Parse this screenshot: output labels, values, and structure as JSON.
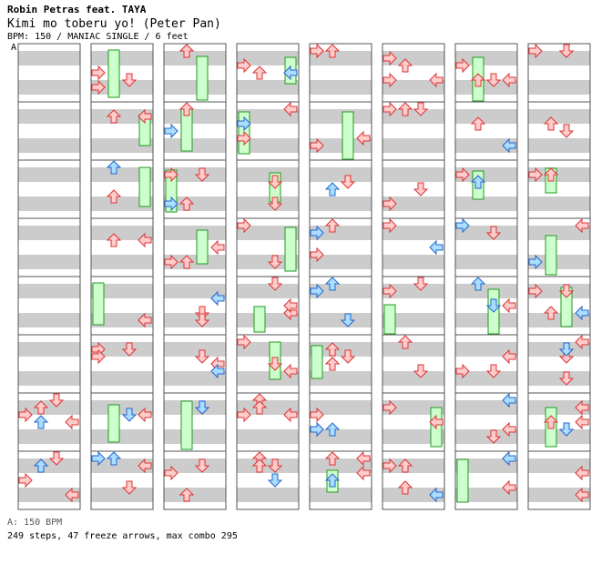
{
  "song": {
    "artist": "Robin Petras feat. TAYA",
    "title": "Kimi mo toberu yo! (Peter Pan)",
    "info": "BPM: 150 / MANIAC SINGLE / 6 feet"
  },
  "section_marker": "A",
  "footer": {
    "bpm_line": "A: 150 BPM",
    "stats_line": "249 steps, 47 freeze arrows, max combo 295"
  },
  "colors": {
    "stripe": "#cccccc",
    "border": "#555555",
    "arrow_red_fill": "#ffcccc",
    "arrow_red_stroke": "#dd3333",
    "arrow_blue_fill": "#aaddff",
    "arrow_blue_stroke": "#2266cc",
    "freeze_fill": "#ccffcc",
    "freeze_stroke": "#229922"
  },
  "chart_data": {
    "type": "step-chart",
    "bpm": 150,
    "difficulty": "MANIAC",
    "style": "SINGLE",
    "feet": 6,
    "lanes": [
      "left",
      "down",
      "up",
      "right"
    ],
    "columns": 8,
    "measures_per_column": 8
  }
}
